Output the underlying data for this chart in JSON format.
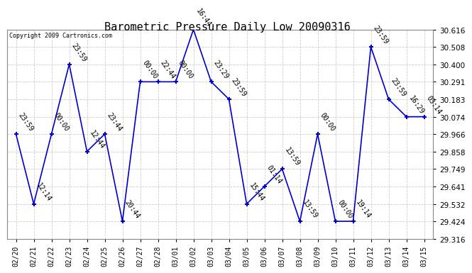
{
  "title": "Barometric Pressure Daily Low 20090316",
  "copyright": "Copyright 2009 Cartronics.com",
  "dates": [
    "02/20",
    "02/21",
    "02/22",
    "02/23",
    "02/24",
    "02/25",
    "02/26",
    "02/27",
    "02/28",
    "03/01",
    "03/02",
    "03/03",
    "03/04",
    "03/05",
    "03/06",
    "03/07",
    "03/08",
    "03/09",
    "03/10",
    "03/11",
    "03/12",
    "03/13",
    "03/14",
    "03/15"
  ],
  "values": [
    29.966,
    29.532,
    29.966,
    30.4,
    29.858,
    29.966,
    29.424,
    30.291,
    30.291,
    30.291,
    30.616,
    30.291,
    30.183,
    29.532,
    29.641,
    29.749,
    29.424,
    29.966,
    29.424,
    29.424,
    30.508,
    30.183,
    30.074,
    30.074
  ],
  "labels": [
    "23:59",
    "12:14",
    "00:00",
    "23:59",
    "12:44",
    "23:44",
    "20:44",
    "00:00",
    "22:44",
    "00:00",
    "16:44",
    "23:29",
    "23:59",
    "15:44",
    "01:14",
    "13:59",
    "13:59",
    "00:00",
    "00:00",
    "19:14",
    "23:59",
    "23:59",
    "16:29",
    "03:14"
  ],
  "ylim": [
    29.316,
    30.616
  ],
  "yticks": [
    29.316,
    29.424,
    29.532,
    29.641,
    29.749,
    29.858,
    29.966,
    30.074,
    30.183,
    30.291,
    30.4,
    30.508,
    30.616
  ],
  "line_color": "#0000cc",
  "bg_color": "#ffffff",
  "grid_color": "#cccccc",
  "title_fontsize": 11,
  "label_fontsize": 7
}
